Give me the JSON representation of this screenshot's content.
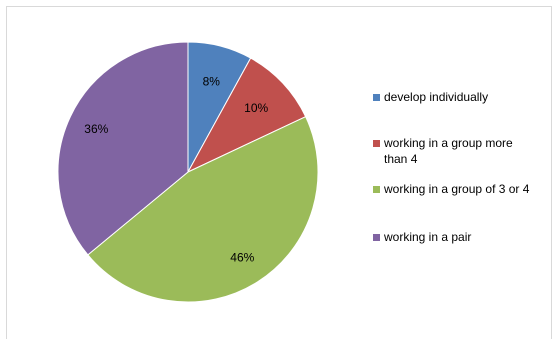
{
  "chart_data": {
    "type": "pie",
    "title": "",
    "slices": [
      {
        "label": "develop individually",
        "value": 8,
        "display": "8%",
        "color": "#4f81bd"
      },
      {
        "label": "working in a group more than 4",
        "value": 10,
        "display": "10%",
        "color": "#c0504d"
      },
      {
        "label": "working in a group of 3 or 4",
        "value": 46,
        "display": "46%",
        "color": "#9bbb59"
      },
      {
        "label": "working in a pair",
        "value": 36,
        "display": "36%",
        "color": "#8064a2"
      }
    ],
    "legend_position": "right",
    "start_angle": "top",
    "direction": "clockwise"
  }
}
